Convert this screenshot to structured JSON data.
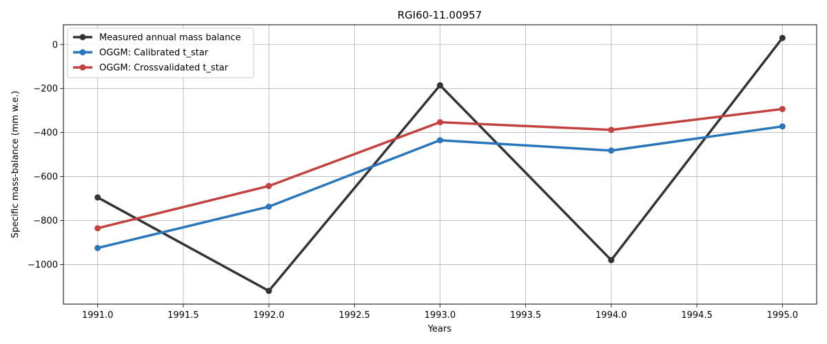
{
  "chart_data": {
    "type": "line",
    "title": "RGI60-11.00957",
    "xlabel": "Years",
    "ylabel": "Specific mass-balance (mm w.e.)",
    "x": [
      1991,
      1992,
      1993,
      1994,
      1995
    ],
    "xlim": [
      1990.8,
      1995.2
    ],
    "ylim": [
      -1180,
      90
    ],
    "xticks": [
      1991.0,
      1991.5,
      1992.0,
      1992.5,
      1993.0,
      1993.5,
      1994.0,
      1994.5,
      1995.0
    ],
    "xtick_labels": [
      "1991.0",
      "1991.5",
      "1992.0",
      "1992.5",
      "1993.0",
      "1993.5",
      "1994.0",
      "1994.5",
      "1995.0"
    ],
    "yticks": [
      0,
      -200,
      -400,
      -600,
      -800,
      -1000
    ],
    "ytick_labels": [
      "0",
      "−200",
      "−400",
      "−600",
      "−800",
      "−1000"
    ],
    "grid": true,
    "legend_position": "top-left",
    "series": [
      {
        "name": "Measured annual mass balance",
        "color": "#333333",
        "values": [
          -695,
          -1120,
          -185,
          -980,
          30
        ]
      },
      {
        "name": "OGGM: Calibrated t_star",
        "color": "#2b76bb",
        "values": [
          -925,
          -737,
          -435,
          -482,
          -372
        ]
      },
      {
        "name": "OGGM: Crossvalidated t_star",
        "color": "#c24240",
        "values": [
          -835,
          -643,
          -353,
          -388,
          -293
        ]
      }
    ]
  }
}
